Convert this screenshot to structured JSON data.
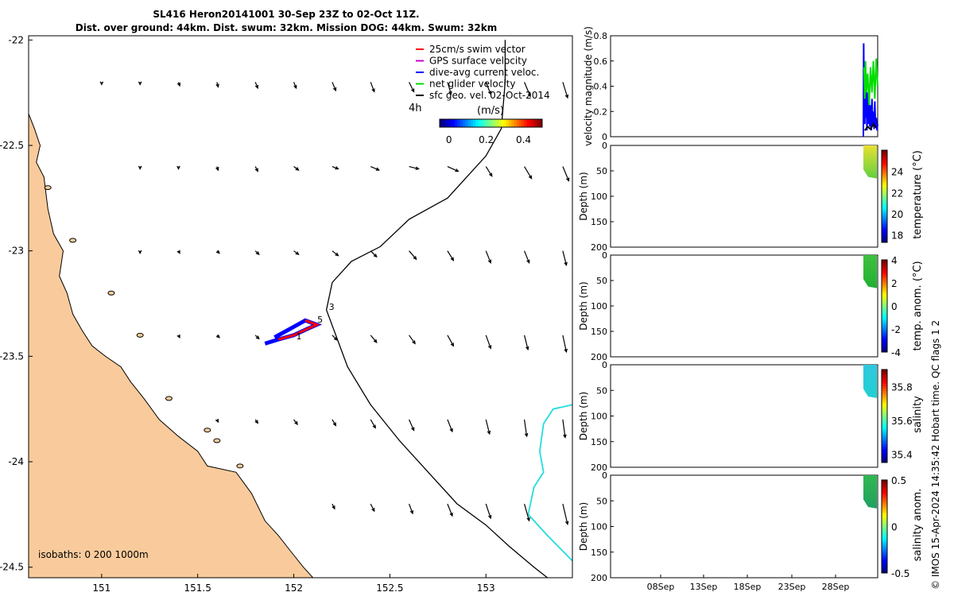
{
  "header": {
    "title_line1": "SL416 Heron20141001 30-Sep 23Z to 02-Oct 11Z.",
    "title_line2": "Dist. over ground: 44km. Dist. swum: 32km. Mission DOG: 44km. Swum: 32km"
  },
  "credit": "© IMOS 15-Apr-2024 14:35:42 Hobart time. QC flags 1  2",
  "colors": {
    "land": "#f9cb9c",
    "coast": "#000000",
    "bathy": "#000000",
    "isobath_cyan": "#22dddd",
    "swim": "#ff0000",
    "gps": "#cc00cc",
    "dive_avg": "#0000ff",
    "net": "#00dd00",
    "sfc": "#000000"
  },
  "chart_data": [
    {
      "id": "map",
      "type": "vector-map",
      "xlim": [
        150.62,
        153.45
      ],
      "ylim": [
        -24.55,
        -21.98
      ],
      "x_ticks": [
        151,
        151.5,
        152,
        152.5,
        153
      ],
      "x_tick_labels": [
        "151",
        "151.5",
        "152",
        "152.5",
        "153"
      ],
      "y_ticks": [
        -22,
        -22.5,
        -23,
        -23.5,
        -24,
        -24.5
      ],
      "y_tick_labels": [
        "-22",
        "-22.5",
        "-23",
        "-23.5",
        "-24",
        "-24.5"
      ],
      "legend": [
        {
          "label": "25cm/s swim vector",
          "color": "#ff0000"
        },
        {
          "label": "GPS surface velocity",
          "color": "#cc00cc"
        },
        {
          "label": "dive-avg current veloc.",
          "color": "#0000ff"
        },
        {
          "label": "net glider velocity",
          "color": "#00dd00"
        },
        {
          "label": "sfc geo. vel. 02-Oct-2014",
          "color": "#000000"
        }
      ],
      "colorbar": {
        "label": "(m/s)",
        "ticks": [
          0,
          0.2,
          0.4
        ],
        "tick_labels": [
          "0",
          "0.2",
          "0.4"
        ],
        "range": [
          -0.05,
          0.5
        ],
        "side_label": "4h"
      },
      "isobath_note": "isobaths: 0   200  1000m",
      "track_labels": [
        {
          "text": "1",
          "lon": 152.0,
          "lat": -23.42
        },
        {
          "text": "3",
          "lon": 152.17,
          "lat": -23.28
        },
        {
          "text": "5",
          "lon": 152.11,
          "lat": -23.34
        }
      ],
      "coast_points": [
        [
          150.62,
          -22.3
        ],
        [
          150.62,
          -22.35
        ],
        [
          150.65,
          -22.42
        ],
        [
          150.68,
          -22.5
        ],
        [
          150.66,
          -22.58
        ],
        [
          150.7,
          -22.65
        ],
        [
          150.72,
          -22.8
        ],
        [
          150.75,
          -22.92
        ],
        [
          150.8,
          -23.0
        ],
        [
          150.78,
          -23.12
        ],
        [
          150.82,
          -23.2
        ],
        [
          150.85,
          -23.3
        ],
        [
          150.9,
          -23.38
        ],
        [
          150.95,
          -23.45
        ],
        [
          151.02,
          -23.5
        ],
        [
          151.1,
          -23.55
        ],
        [
          151.15,
          -23.62
        ],
        [
          151.22,
          -23.7
        ],
        [
          151.3,
          -23.8
        ],
        [
          151.4,
          -23.88
        ],
        [
          151.5,
          -23.95
        ],
        [
          151.55,
          -24.02
        ],
        [
          151.7,
          -24.05
        ],
        [
          151.78,
          -24.15
        ],
        [
          151.85,
          -24.28
        ],
        [
          151.92,
          -24.35
        ],
        [
          151.98,
          -24.42
        ],
        [
          152.05,
          -24.5
        ],
        [
          152.1,
          -24.55
        ]
      ],
      "isobath_1000": [
        [
          153.1,
          -22.0
        ],
        [
          153.1,
          -22.2
        ],
        [
          153.08,
          -22.42
        ],
        [
          153.0,
          -22.55
        ],
        [
          152.8,
          -22.75
        ],
        [
          152.6,
          -22.85
        ],
        [
          152.45,
          -22.98
        ],
        [
          152.3,
          -23.05
        ],
        [
          152.2,
          -23.15
        ],
        [
          152.17,
          -23.28
        ],
        [
          152.28,
          -23.55
        ],
        [
          152.4,
          -23.73
        ],
        [
          152.55,
          -23.9
        ],
        [
          152.7,
          -24.05
        ],
        [
          152.85,
          -24.2
        ],
        [
          153.0,
          -24.3
        ],
        [
          153.12,
          -24.4
        ],
        [
          153.25,
          -24.5
        ],
        [
          153.32,
          -24.55
        ]
      ],
      "isobath_cyan": [
        [
          153.45,
          -23.73
        ],
        [
          153.35,
          -23.75
        ],
        [
          153.3,
          -23.82
        ],
        [
          153.28,
          -23.95
        ],
        [
          153.3,
          -24.05
        ],
        [
          153.25,
          -24.12
        ],
        [
          153.22,
          -24.25
        ],
        [
          153.32,
          -24.35
        ],
        [
          153.45,
          -24.47
        ]
      ],
      "vectors": [
        {
          "lon": 151.0,
          "lat": -22.2,
          "u": 0.0,
          "v": -0.02
        },
        {
          "lon": 151.2,
          "lat": -22.2,
          "u": 0.0,
          "v": -0.02
        },
        {
          "lon": 151.4,
          "lat": -22.2,
          "u": 0.01,
          "v": -0.03
        },
        {
          "lon": 151.6,
          "lat": -22.2,
          "u": 0.01,
          "v": -0.04
        },
        {
          "lon": 151.8,
          "lat": -22.2,
          "u": 0.02,
          "v": -0.05
        },
        {
          "lon": 152.0,
          "lat": -22.2,
          "u": 0.02,
          "v": -0.05
        },
        {
          "lon": 152.2,
          "lat": -22.2,
          "u": 0.03,
          "v": -0.07
        },
        {
          "lon": 152.4,
          "lat": -22.2,
          "u": 0.03,
          "v": -0.08
        },
        {
          "lon": 152.6,
          "lat": -22.2,
          "u": 0.04,
          "v": -0.08
        },
        {
          "lon": 152.8,
          "lat": -22.2,
          "u": 0.03,
          "v": -0.1
        },
        {
          "lon": 153.0,
          "lat": -22.2,
          "u": 0.04,
          "v": -0.1
        },
        {
          "lon": 153.2,
          "lat": -22.2,
          "u": 0.05,
          "v": -0.12
        },
        {
          "lon": 153.4,
          "lat": -22.2,
          "u": 0.04,
          "v": -0.13
        },
        {
          "lon": 151.2,
          "lat": -22.6,
          "u": 0.0,
          "v": -0.02
        },
        {
          "lon": 151.4,
          "lat": -22.6,
          "u": 0.0,
          "v": -0.02
        },
        {
          "lon": 151.6,
          "lat": -22.6,
          "u": 0.01,
          "v": -0.03
        },
        {
          "lon": 151.8,
          "lat": -22.6,
          "u": 0.02,
          "v": -0.04
        },
        {
          "lon": 152.0,
          "lat": -22.6,
          "u": 0.04,
          "v": -0.03
        },
        {
          "lon": 152.2,
          "lat": -22.6,
          "u": 0.05,
          "v": -0.02
        },
        {
          "lon": 152.4,
          "lat": -22.6,
          "u": 0.07,
          "v": -0.03
        },
        {
          "lon": 152.6,
          "lat": -22.6,
          "u": 0.08,
          "v": -0.02
        },
        {
          "lon": 152.8,
          "lat": -22.6,
          "u": 0.09,
          "v": -0.04
        },
        {
          "lon": 153.0,
          "lat": -22.6,
          "u": 0.05,
          "v": -0.08
        },
        {
          "lon": 153.2,
          "lat": -22.6,
          "u": 0.06,
          "v": -0.1
        },
        {
          "lon": 153.4,
          "lat": -22.6,
          "u": 0.05,
          "v": -0.12
        },
        {
          "lon": 151.2,
          "lat": -23.0,
          "u": 0.0,
          "v": -0.02
        },
        {
          "lon": 151.4,
          "lat": -23.0,
          "u": 0.01,
          "v": -0.02
        },
        {
          "lon": 151.6,
          "lat": -23.0,
          "u": 0.02,
          "v": -0.02
        },
        {
          "lon": 151.8,
          "lat": -23.0,
          "u": 0.03,
          "v": -0.03
        },
        {
          "lon": 152.0,
          "lat": -23.0,
          "u": 0.04,
          "v": -0.03
        },
        {
          "lon": 152.2,
          "lat": -23.0,
          "u": 0.05,
          "v": -0.04
        },
        {
          "lon": 152.4,
          "lat": -23.0,
          "u": 0.05,
          "v": -0.05
        },
        {
          "lon": 152.6,
          "lat": -23.0,
          "u": 0.06,
          "v": -0.07
        },
        {
          "lon": 152.8,
          "lat": -23.0,
          "u": 0.05,
          "v": -0.08
        },
        {
          "lon": 153.0,
          "lat": -23.0,
          "u": 0.04,
          "v": -0.1
        },
        {
          "lon": 153.2,
          "lat": -23.0,
          "u": 0.04,
          "v": -0.1
        },
        {
          "lon": 153.4,
          "lat": -23.0,
          "u": 0.03,
          "v": -0.12
        },
        {
          "lon": 151.4,
          "lat": -23.4,
          "u": 0.01,
          "v": -0.02
        },
        {
          "lon": 151.6,
          "lat": -23.4,
          "u": 0.02,
          "v": -0.02
        },
        {
          "lon": 151.8,
          "lat": -23.4,
          "u": 0.03,
          "v": -0.03
        },
        {
          "lon": 152.2,
          "lat": -23.4,
          "u": 0.04,
          "v": -0.04
        },
        {
          "lon": 152.4,
          "lat": -23.4,
          "u": 0.05,
          "v": -0.06
        },
        {
          "lon": 152.6,
          "lat": -23.4,
          "u": 0.05,
          "v": -0.07
        },
        {
          "lon": 152.8,
          "lat": -23.4,
          "u": 0.05,
          "v": -0.09
        },
        {
          "lon": 153.0,
          "lat": -23.4,
          "u": 0.04,
          "v": -0.11
        },
        {
          "lon": 153.2,
          "lat": -23.4,
          "u": 0.03,
          "v": -0.12
        },
        {
          "lon": 153.4,
          "lat": -23.4,
          "u": 0.03,
          "v": -0.14
        },
        {
          "lon": 151.6,
          "lat": -23.8,
          "u": 0.01,
          "v": -0.02
        },
        {
          "lon": 151.8,
          "lat": -23.8,
          "u": 0.02,
          "v": -0.03
        },
        {
          "lon": 152.0,
          "lat": -23.8,
          "u": 0.03,
          "v": -0.04
        },
        {
          "lon": 152.2,
          "lat": -23.8,
          "u": 0.03,
          "v": -0.05
        },
        {
          "lon": 152.4,
          "lat": -23.8,
          "u": 0.04,
          "v": -0.07
        },
        {
          "lon": 152.6,
          "lat": -23.8,
          "u": 0.04,
          "v": -0.09
        },
        {
          "lon": 152.8,
          "lat": -23.8,
          "u": 0.04,
          "v": -0.1
        },
        {
          "lon": 153.0,
          "lat": -23.8,
          "u": 0.03,
          "v": -0.12
        },
        {
          "lon": 153.2,
          "lat": -23.8,
          "u": 0.02,
          "v": -0.14
        },
        {
          "lon": 153.4,
          "lat": -23.8,
          "u": 0.02,
          "v": -0.15
        },
        {
          "lon": 152.2,
          "lat": -24.2,
          "u": 0.02,
          "v": -0.04
        },
        {
          "lon": 152.4,
          "lat": -24.2,
          "u": 0.03,
          "v": -0.06
        },
        {
          "lon": 152.6,
          "lat": -24.2,
          "u": 0.03,
          "v": -0.08
        },
        {
          "lon": 152.8,
          "lat": -24.2,
          "u": 0.04,
          "v": -0.1
        },
        {
          "lon": 153.0,
          "lat": -24.2,
          "u": 0.04,
          "v": -0.12
        },
        {
          "lon": 153.2,
          "lat": -24.2,
          "u": 0.04,
          "v": -0.14
        },
        {
          "lon": 153.4,
          "lat": -24.2,
          "u": 0.04,
          "v": -0.17
        }
      ]
    },
    {
      "id": "velocity",
      "type": "line",
      "ylabel": "velocity magnitude (m/s)",
      "ylim": [
        0,
        0.8
      ],
      "y_ticks": [
        0,
        0.2,
        0.4,
        0.6,
        0.8
      ],
      "y_tick_labels": [
        "0",
        "0.2",
        "0.4",
        "0.6",
        "0.8"
      ],
      "series": [
        {
          "name": "dive-avg current veloc.",
          "color": "#0000ff",
          "x": [
            0,
            0.02,
            0.05,
            0.08,
            0.1,
            0.13,
            0.16,
            0.2,
            0.25,
            0.3,
            0.35,
            0.4,
            0.45,
            0.5,
            0.55,
            0.6,
            0.65,
            0.7,
            0.75,
            0.8,
            0.85,
            0.9,
            0.95,
            1.0
          ],
          "y": [
            0.0,
            0.74,
            0.2,
            0.5,
            0.1,
            0.45,
            0.15,
            0.4,
            0.05,
            0.35,
            0.1,
            0.3,
            0.08,
            0.25,
            0.05,
            0.3,
            0.1,
            0.2,
            0.06,
            0.28,
            0.08,
            0.15,
            0.05,
            0.1
          ]
        },
        {
          "name": "net glider velocity",
          "color": "#00dd00",
          "x": [
            0.05,
            0.1,
            0.15,
            0.2,
            0.3,
            0.4,
            0.5,
            0.6,
            0.7,
            0.8,
            0.9,
            1.0
          ],
          "y": [
            0.55,
            0.3,
            0.6,
            0.35,
            0.5,
            0.25,
            0.55,
            0.35,
            0.6,
            0.3,
            0.62,
            0.4
          ]
        },
        {
          "name": "sfc",
          "color": "#000000",
          "x": [
            0.1,
            0.3,
            0.5,
            0.7,
            0.9
          ],
          "y": [
            0.05,
            0.08,
            0.06,
            0.1,
            0.07
          ]
        }
      ]
    },
    {
      "id": "temperature",
      "type": "heatmap",
      "ylabel": "Depth (m)",
      "cbar_label": "temperature (°C)",
      "ylim": [
        0,
        200
      ],
      "y_ticks": [
        0,
        50,
        100,
        150,
        200
      ],
      "y_tick_labels": [
        "0",
        "50",
        "100",
        "150",
        "200"
      ],
      "clim": [
        17.3,
        26
      ],
      "cbar_ticks": [
        18,
        20,
        22,
        24
      ],
      "cbar_tick_labels": [
        "18",
        "20",
        "22",
        "24"
      ],
      "data_top_color": "#e8e030",
      "data_bottom_color": "#60d040",
      "depth_range": [
        0,
        65
      ]
    },
    {
      "id": "temp_anom",
      "type": "heatmap",
      "ylabel": "Depth (m)",
      "cbar_label": "temp. anom. (°C)",
      "ylim": [
        0,
        200
      ],
      "y_ticks": [
        0,
        50,
        100,
        150,
        200
      ],
      "y_tick_labels": [
        "0",
        "50",
        "100",
        "150",
        "200"
      ],
      "clim": [
        -4,
        4
      ],
      "cbar_ticks": [
        -4,
        -2,
        0,
        2,
        4
      ],
      "cbar_tick_labels": [
        "-4",
        "-2",
        "0",
        "2",
        "4"
      ],
      "data_top_color": "#40c040",
      "data_bottom_color": "#20b030",
      "depth_range": [
        0,
        65
      ]
    },
    {
      "id": "salinity",
      "type": "heatmap",
      "ylabel": "Depth (m)",
      "cbar_label": "salinity",
      "ylim": [
        0,
        200
      ],
      "y_ticks": [
        0,
        50,
        100,
        150,
        200
      ],
      "y_tick_labels": [
        "0",
        "50",
        "100",
        "150",
        "200"
      ],
      "clim": [
        35.35,
        35.9
      ],
      "cbar_ticks": [
        35.4,
        35.6,
        35.8
      ],
      "cbar_tick_labels": [
        "35.4",
        "35.6",
        "35.8"
      ],
      "data_top_color": "#30c8e0",
      "data_bottom_color": "#20d0d0",
      "depth_range": [
        0,
        65
      ]
    },
    {
      "id": "sal_anom",
      "type": "heatmap",
      "ylabel": "Depth (m)",
      "cbar_label": "salinity anom.",
      "ylim": [
        0,
        200
      ],
      "y_ticks": [
        0,
        50,
        100,
        150,
        200
      ],
      "y_tick_labels": [
        "0",
        "50",
        "100",
        "150",
        "200"
      ],
      "clim": [
        -0.5,
        0.5
      ],
      "cbar_ticks": [
        -0.5,
        0,
        0.5
      ],
      "cbar_tick_labels": [
        "-0.5",
        "0",
        "0.5"
      ],
      "data_top_color": "#30b850",
      "data_bottom_color": "#20a060",
      "depth_range": [
        0,
        65
      ]
    }
  ],
  "time_axis": {
    "ticks": [
      "08Sep",
      "13Sep",
      "18Sep",
      "23Sep",
      "28Sep"
    ]
  }
}
